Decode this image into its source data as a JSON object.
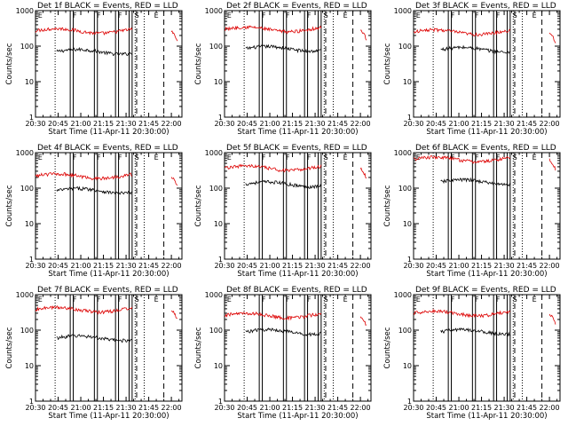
{
  "chart_data": {
    "type": "line",
    "xlabel": "Start Time (11-Apr-11 20:30:00)",
    "ylabel": "Counts/sec",
    "x_ticks": [
      "20:30",
      "20:45",
      "21:00",
      "21:15",
      "21:30",
      "21:45",
      "22:00"
    ],
    "x_range": [
      "20:30",
      "22:07"
    ],
    "y_ticks": [
      "1",
      "10",
      "100",
      "1000"
    ],
    "ylim": [
      1,
      1000
    ],
    "y_scale": "log",
    "grid": false,
    "event_marks": [
      "E",
      "F",
      "F",
      "F",
      "S",
      "E"
    ],
    "colors": {
      "events": "#000000",
      "lld": "#dd0000"
    },
    "panels": [
      {
        "title": "Det 1f BLACK = Events, RED = LLD",
        "black_level": 70,
        "red_level": 270,
        "series": [
          {
            "name": "BLACK = Events",
            "color": "black"
          },
          {
            "name": "RED = LLD",
            "color": "red"
          }
        ]
      },
      {
        "title": "Det 2f BLACK = Events, RED = LLD",
        "black_level": 85,
        "red_level": 300
      },
      {
        "title": "Det 3f BLACK = Events, RED = LLD",
        "black_level": 80,
        "red_level": 250
      },
      {
        "title": "Det 4f BLACK = Events, RED = LLD",
        "black_level": 85,
        "red_level": 220
      },
      {
        "title": "Det 5f BLACK = Events, RED = LLD",
        "black_level": 130,
        "red_level": 370
      },
      {
        "title": "Det 6f BLACK = Events, RED = LLD",
        "black_level": 150,
        "red_level": 650
      },
      {
        "title": "Det 7f BLACK = Events, RED = LLD",
        "black_level": 60,
        "red_level": 380
      },
      {
        "title": "Det 8f BLACK = Events, RED = LLD",
        "black_level": 90,
        "red_level": 260
      },
      {
        "title": "Det 9f BLACK = Events, RED = LLD",
        "black_level": 90,
        "red_level": 300
      }
    ]
  }
}
